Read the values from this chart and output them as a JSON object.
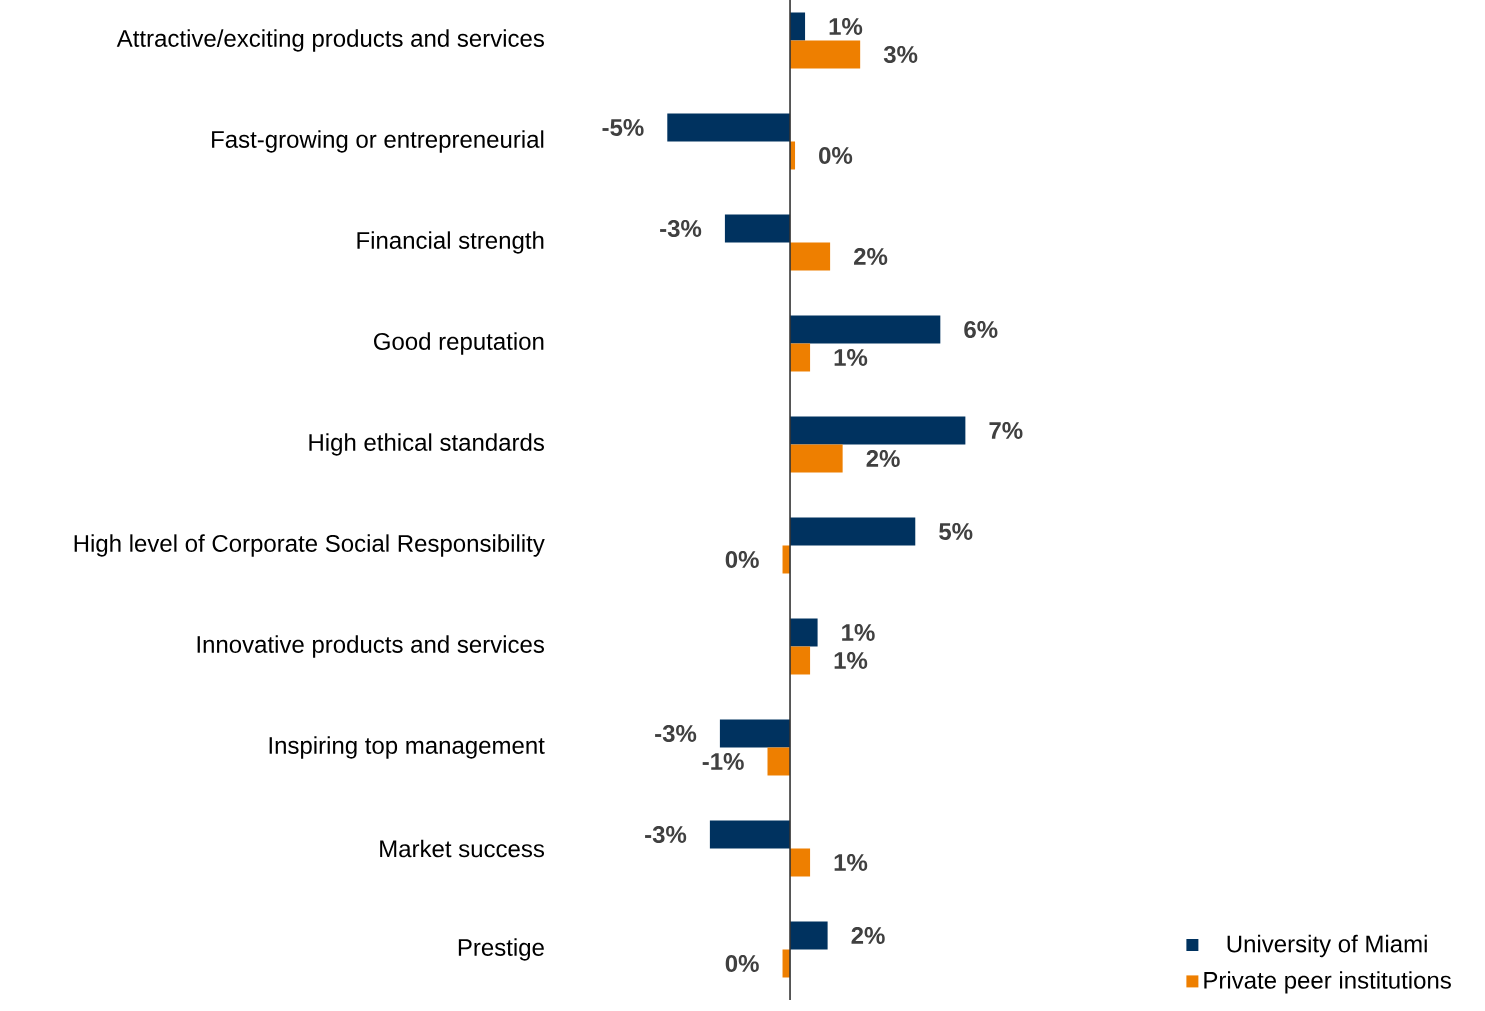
{
  "chart_data": {
    "type": "bar",
    "orientation": "horizontal",
    "categories": [
      "Attractive/exciting products and services",
      "Fast-growing or entrepreneurial",
      "Financial strength",
      "Good reputation",
      "High ethical standards",
      "High level of Corporate Social Responsibility",
      "Innovative products and services",
      "Inspiring top management",
      "Market success",
      "Prestige"
    ],
    "series": [
      {
        "name": "University of Miami",
        "color": "#00325f",
        "values": [
          0.6,
          -4.9,
          -2.6,
          6.0,
          7.0,
          5.0,
          1.1,
          -2.8,
          -3.2,
          1.5
        ],
        "value_labels": [
          "1%",
          "-5%",
          "-3%",
          "6%",
          "7%",
          "5%",
          "1%",
          "-3%",
          "-3%",
          "2%"
        ]
      },
      {
        "name": "Private peer institutions",
        "color": "#ee7f00",
        "values": [
          2.8,
          0.2,
          1.6,
          0.8,
          2.1,
          -0.3,
          0.8,
          -0.9,
          0.8,
          -0.3
        ],
        "value_labels": [
          "3%",
          "0%",
          "2%",
          "1%",
          "2%",
          "0%",
          "1%",
          "-1%",
          "1%",
          "0%"
        ]
      }
    ],
    "legend": "bottom right"
  }
}
